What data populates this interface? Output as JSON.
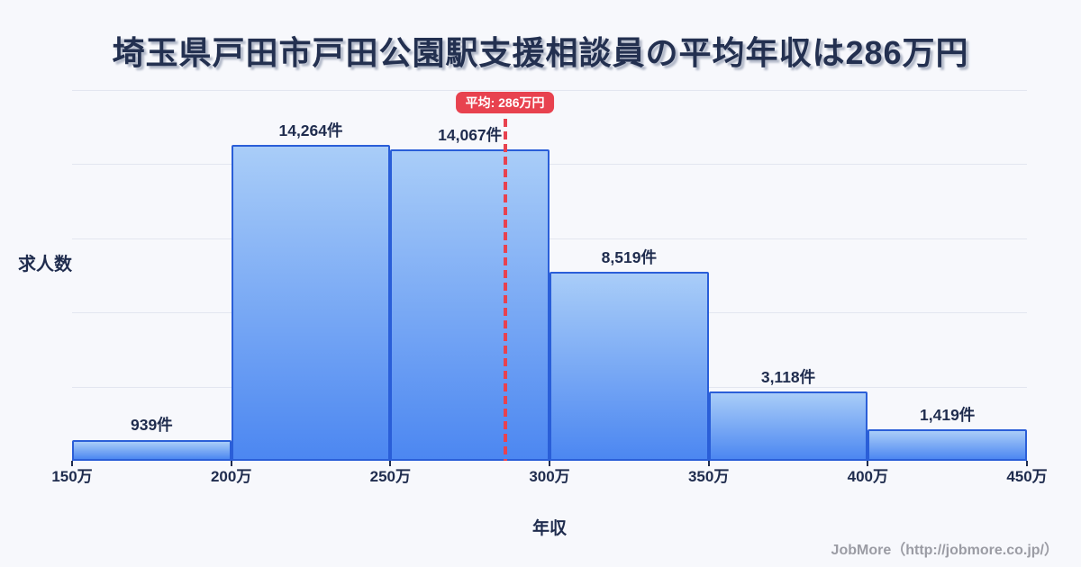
{
  "page": {
    "title": "埼玉県戸田市戸田公園駅支援相談員の平均年収は286万円",
    "footer_credit": "JobMore（http://jobmore.co.jp/）"
  },
  "chart_data": {
    "type": "bar",
    "subtype": "histogram",
    "title": "埼玉県戸田市戸田公園駅支援相談員の平均年収は286万円",
    "xlabel": "年収",
    "ylabel": "求人数",
    "xlim": [
      150,
      450
    ],
    "ylim": [
      0,
      16750
    ],
    "x_unit": "万円",
    "grid": "horizontal",
    "gridline_count": 5,
    "legend": false,
    "x_tick_labels": [
      "150万",
      "200万",
      "250万",
      "300万",
      "350万",
      "400万",
      "450万"
    ],
    "x_tick_values": [
      150,
      200,
      250,
      300,
      350,
      400,
      450
    ],
    "bins": [
      {
        "range": [
          150,
          200
        ],
        "value": 939,
        "label": "939件"
      },
      {
        "range": [
          200,
          250
        ],
        "value": 14264,
        "label": "14,264件"
      },
      {
        "range": [
          250,
          300
        ],
        "value": 14067,
        "label": "14,067件"
      },
      {
        "range": [
          300,
          350
        ],
        "value": 8519,
        "label": "8,519件"
      },
      {
        "range": [
          350,
          400
        ],
        "value": 3118,
        "label": "3,118件"
      },
      {
        "range": [
          400,
          450
        ],
        "value": 1419,
        "label": "1,419件"
      }
    ],
    "mean_line": {
      "value": 286,
      "label": "平均: 286万円",
      "style": "dashed",
      "color": "#e8424f"
    }
  },
  "colors": {
    "background": "#f7f8fc",
    "text_primary": "#1f2c4e",
    "title": "#233050",
    "gridline": "#e3e6f0",
    "bar_border": "#2a5ed8",
    "bar_gradient_top": "#a9cdf8",
    "bar_gradient_bottom": "#4c87f1",
    "mean_red": "#e8424f",
    "footer_gray": "#9b9ca4"
  }
}
